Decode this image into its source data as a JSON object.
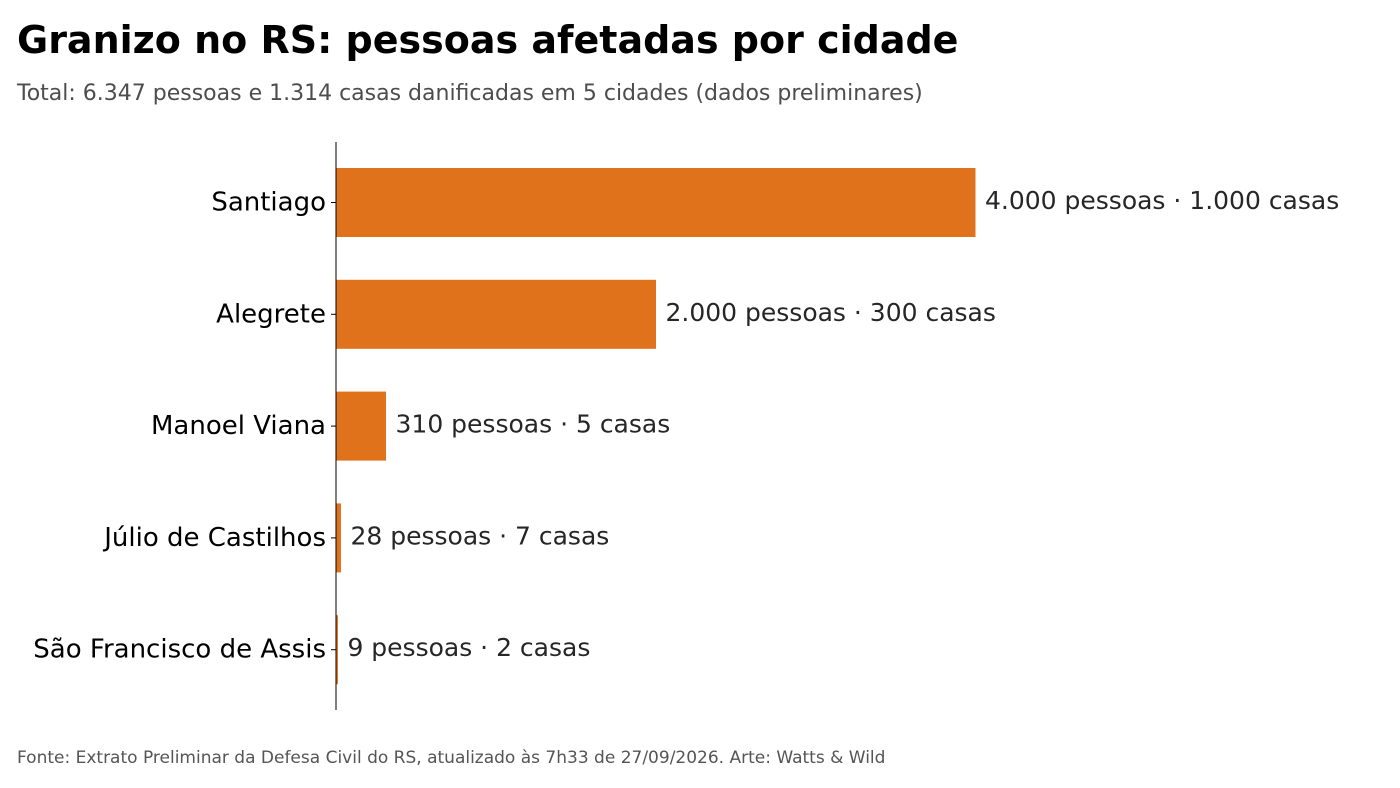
{
  "header": {
    "title": "Granizo no RS: pessoas afetadas por cidade",
    "subtitle": "Total: 6.347 pessoas e 1.314 casas danificadas em 5 cidades (dados preliminares)"
  },
  "footer": {
    "source": "Fonte: Extrato Preliminar da Defesa Civil do RS, atualizado às 7h33 de 27/09/2026. Arte: Watts & Wild"
  },
  "chart_data": {
    "type": "bar",
    "orientation": "horizontal",
    "categories": [
      "Santiago",
      "Alegrete",
      "Manoel Viana",
      "Júlio de Castilhos",
      "São Francisco de Assis"
    ],
    "values": [
      4000,
      2000,
      310,
      28,
      9
    ],
    "houses": [
      1000,
      300,
      5,
      7,
      2
    ],
    "data_labels": [
      "4.000 pessoas · 1.000 casas",
      "2.000 pessoas · 300 casas",
      "310 pessoas · 5 casas",
      "28 pessoas · 7 casas",
      "9 pessoas · 2 casas"
    ],
    "xlim": [
      0,
      4000
    ],
    "bar_color": "#e0721c",
    "grid": false,
    "legend": "none"
  }
}
